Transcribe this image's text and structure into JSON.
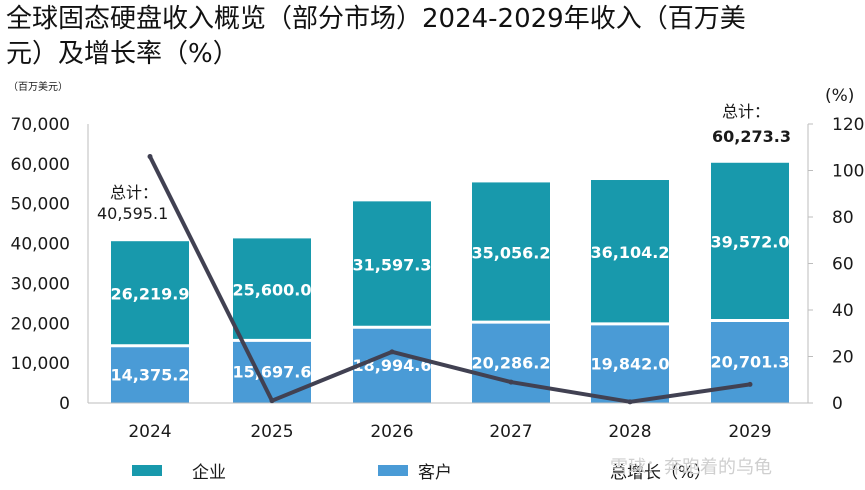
{
  "title": "全球固态硬盘收入概览（部分市场）2024-2029年收入（百万美元）及增长率（%）",
  "left_axis_unit": "（百万美元）",
  "right_axis_unit": "(%)",
  "watermark": "雪球：奔跑着的乌龟",
  "colors": {
    "enterprise": "#1899ac",
    "client": "#4a9bd6",
    "growth": "#414152",
    "separator": "#ffffff"
  },
  "chart_data": {
    "type": "bar",
    "stacked": true,
    "categories": [
      "2024",
      "2025",
      "2026",
      "2027",
      "2028",
      "2029"
    ],
    "series": [
      {
        "name": "客户",
        "values": [
          14375.2,
          15697.6,
          18994.6,
          20286.2,
          19842.0,
          20701.3
        ],
        "labels": [
          "14,375.2",
          "15,697.6",
          "18,994.6",
          "20,286.2",
          "19,842.0",
          "20,701.3"
        ]
      },
      {
        "name": "企业",
        "values": [
          26219.9,
          25600.0,
          31597.3,
          35056.2,
          36104.2,
          39572.0
        ],
        "labels": [
          "26,219.9",
          "25,600.0",
          "31,597.3",
          "35,056.2",
          "36,104.2",
          "39,572.0"
        ]
      }
    ],
    "line_series": {
      "name": "总增长（%）",
      "axis": "right",
      "values": [
        106,
        1,
        22,
        9,
        0.5,
        8
      ]
    },
    "ylim": [
      0,
      70000
    ],
    "yticks": [
      0,
      10000,
      20000,
      30000,
      40000,
      50000,
      60000,
      70000
    ],
    "ytick_labels": [
      "0",
      "10,000",
      "20,000",
      "30,000",
      "40,000",
      "50,000",
      "60,000",
      "70,000"
    ],
    "y2lim": [
      0,
      120
    ],
    "y2ticks": [
      0,
      20,
      40,
      60,
      80,
      100,
      120
    ],
    "y2tick_labels": [
      "0",
      "20",
      "40",
      "60",
      "80",
      "100",
      "120"
    ],
    "totals": [
      {
        "category": "2024",
        "label": "总计：",
        "value": "40,595.1"
      },
      {
        "category": "2029",
        "label": "总计：",
        "value": "60,273.3"
      }
    ],
    "legend": [
      "企业",
      "客户",
      "总增长（%）"
    ],
    "legend_position": "bottom"
  }
}
